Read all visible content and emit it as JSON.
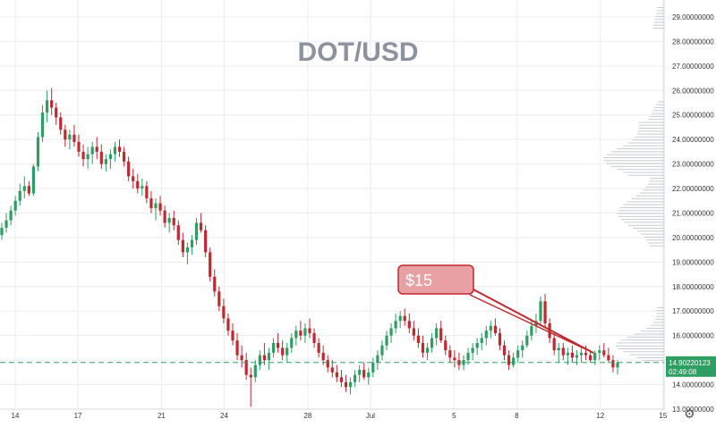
{
  "chart_data": {
    "type": "candlestick",
    "title": "DOT/USD",
    "annotation": "$15",
    "colors": {
      "up": "#2e9e62",
      "down": "#c0282f",
      "current_line": "#2e9e62",
      "annotation_fill": "#e8a0a4",
      "annotation_stroke": "#c0282f",
      "grid": "#e9edf2",
      "title": "#8c929e",
      "volume_profile": "#c8cbd0"
    },
    "y_ticks": [
      "13.00000000",
      "14.00000000",
      "15.00000000",
      "16.00000000",
      "17.00000000",
      "18.00000000",
      "19.00000000",
      "20.00000000",
      "21.00000000",
      "22.00000000",
      "23.00000000",
      "24.00000000",
      "25.00000000",
      "26.00000000",
      "27.00000000",
      "28.00000000",
      "29.00000000"
    ],
    "ylim": [
      13,
      29.4
    ],
    "x_ticks": [
      {
        "label": "14",
        "day": 0
      },
      {
        "label": "17",
        "day": 3
      },
      {
        "label": "21",
        "day": 7
      },
      {
        "label": "24",
        "day": 10
      },
      {
        "label": "28",
        "day": 14
      },
      {
        "label": "Jul",
        "day": 17
      },
      {
        "label": "5",
        "day": 21
      },
      {
        "label": "8",
        "day": 24
      },
      {
        "label": "12",
        "day": 28
      },
      {
        "label": "15",
        "day": 31
      }
    ],
    "x_axis_start_label": "14",
    "current_price": {
      "value": 14.90220123,
      "label": "14.90220123",
      "countdown": "02:49:08"
    },
    "settings_icon": "gear-icon",
    "candles": [
      [
        20.1,
        20.6,
        19.9,
        20.4
      ],
      [
        20.4,
        21.0,
        20.2,
        20.7
      ],
      [
        20.7,
        21.3,
        20.5,
        21.1
      ],
      [
        21.1,
        21.7,
        20.9,
        21.5
      ],
      [
        21.5,
        22.2,
        21.3,
        21.9
      ],
      [
        21.9,
        22.5,
        21.6,
        22.1
      ],
      [
        22.1,
        22.3,
        21.7,
        21.8
      ],
      [
        21.8,
        23.0,
        21.7,
        22.9
      ],
      [
        22.9,
        24.3,
        22.7,
        24.1
      ],
      [
        24.1,
        25.4,
        23.9,
        25.1
      ],
      [
        25.1,
        26.0,
        24.7,
        25.6
      ],
      [
        25.6,
        26.1,
        25.0,
        25.3
      ],
      [
        25.3,
        25.5,
        24.6,
        24.9
      ],
      [
        24.9,
        25.1,
        24.2,
        24.4
      ],
      [
        24.4,
        24.6,
        23.7,
        24.0
      ],
      [
        24.0,
        24.4,
        23.6,
        24.2
      ],
      [
        24.2,
        24.6,
        23.7,
        23.9
      ],
      [
        23.9,
        24.2,
        23.3,
        23.5
      ],
      [
        23.5,
        23.8,
        22.9,
        23.2
      ],
      [
        23.2,
        23.7,
        22.8,
        23.4
      ],
      [
        23.4,
        23.9,
        23.0,
        23.7
      ],
      [
        23.7,
        24.1,
        23.2,
        23.5
      ],
      [
        23.5,
        23.8,
        22.8,
        23.0
      ],
      [
        23.0,
        23.4,
        22.7,
        23.2
      ],
      [
        23.2,
        23.6,
        22.8,
        23.4
      ],
      [
        23.4,
        23.9,
        23.1,
        23.7
      ],
      [
        23.7,
        24.0,
        23.3,
        23.5
      ],
      [
        23.5,
        23.7,
        22.9,
        23.1
      ],
      [
        23.1,
        23.3,
        22.3,
        22.5
      ],
      [
        22.5,
        22.8,
        22.0,
        22.3
      ],
      [
        22.3,
        22.6,
        21.8,
        22.0
      ],
      [
        22.0,
        22.4,
        21.7,
        22.1
      ],
      [
        22.1,
        22.3,
        21.4,
        21.6
      ],
      [
        21.6,
        21.9,
        21.0,
        21.2
      ],
      [
        21.2,
        21.6,
        20.7,
        21.4
      ],
      [
        21.4,
        21.7,
        20.9,
        21.1
      ],
      [
        21.1,
        21.3,
        20.4,
        20.6
      ],
      [
        20.6,
        21.0,
        20.2,
        20.8
      ],
      [
        20.8,
        21.1,
        20.3,
        20.5
      ],
      [
        20.5,
        20.7,
        19.7,
        19.9
      ],
      [
        19.9,
        20.2,
        19.2,
        19.4
      ],
      [
        19.4,
        19.8,
        18.9,
        19.6
      ],
      [
        19.6,
        20.1,
        19.3,
        19.9
      ],
      [
        19.9,
        20.8,
        19.7,
        20.6
      ],
      [
        20.6,
        21.0,
        20.2,
        20.3
      ],
      [
        20.3,
        20.5,
        19.2,
        19.4
      ],
      [
        19.4,
        19.6,
        18.2,
        18.4
      ],
      [
        18.4,
        18.7,
        17.6,
        17.8
      ],
      [
        17.8,
        18.0,
        17.0,
        17.2
      ],
      [
        17.2,
        17.5,
        16.5,
        16.7
      ],
      [
        16.7,
        16.9,
        16.0,
        16.2
      ],
      [
        16.2,
        16.5,
        15.6,
        15.8
      ],
      [
        15.8,
        16.1,
        15.0,
        15.2
      ],
      [
        15.2,
        15.6,
        14.7,
        15.0
      ],
      [
        15.0,
        15.3,
        14.2,
        14.4
      ],
      [
        14.4,
        14.7,
        13.1,
        14.3
      ],
      [
        14.3,
        15.0,
        14.1,
        14.8
      ],
      [
        14.8,
        15.4,
        14.6,
        15.2
      ],
      [
        15.2,
        15.7,
        14.8,
        15.0
      ],
      [
        15.0,
        15.5,
        14.6,
        15.3
      ],
      [
        15.3,
        15.9,
        15.1,
        15.7
      ],
      [
        15.7,
        16.1,
        15.3,
        15.5
      ],
      [
        15.5,
        15.8,
        15.0,
        15.2
      ],
      [
        15.2,
        15.7,
        14.9,
        15.5
      ],
      [
        15.5,
        16.1,
        15.3,
        15.9
      ],
      [
        15.9,
        16.4,
        15.6,
        16.2
      ],
      [
        16.2,
        16.6,
        15.8,
        16.0
      ],
      [
        16.0,
        16.5,
        15.7,
        16.3
      ],
      [
        16.3,
        16.7,
        15.9,
        16.1
      ],
      [
        16.1,
        16.3,
        15.5,
        15.7
      ],
      [
        15.7,
        15.9,
        15.1,
        15.3
      ],
      [
        15.3,
        15.6,
        14.8,
        15.0
      ],
      [
        15.0,
        15.2,
        14.5,
        14.7
      ],
      [
        14.7,
        15.0,
        14.3,
        14.5
      ],
      [
        14.5,
        14.8,
        14.1,
        14.3
      ],
      [
        14.3,
        14.6,
        13.9,
        14.1
      ],
      [
        14.1,
        14.4,
        13.7,
        13.9
      ],
      [
        13.9,
        14.3,
        13.6,
        14.1
      ],
      [
        14.1,
        14.6,
        13.9,
        14.4
      ],
      [
        14.4,
        14.8,
        14.1,
        14.6
      ],
      [
        14.6,
        14.9,
        14.2,
        14.3
      ],
      [
        14.3,
        14.7,
        14.0,
        14.5
      ],
      [
        14.5,
        15.1,
        14.3,
        14.9
      ],
      [
        14.9,
        15.4,
        14.6,
        15.2
      ],
      [
        15.2,
        15.8,
        15.0,
        15.6
      ],
      [
        15.6,
        16.2,
        15.4,
        16.0
      ],
      [
        16.0,
        16.5,
        15.7,
        16.3
      ],
      [
        16.3,
        16.9,
        16.1,
        16.6
      ],
      [
        16.6,
        17.0,
        16.3,
        16.8
      ],
      [
        16.8,
        17.1,
        16.4,
        16.6
      ],
      [
        16.6,
        16.9,
        16.1,
        16.3
      ],
      [
        16.3,
        16.6,
        15.8,
        16.0
      ],
      [
        16.0,
        16.3,
        15.5,
        15.7
      ],
      [
        15.7,
        16.0,
        15.1,
        15.3
      ],
      [
        15.3,
        15.7,
        15.0,
        15.5
      ],
      [
        15.5,
        16.1,
        15.3,
        15.9
      ],
      [
        15.9,
        16.5,
        15.6,
        16.3
      ],
      [
        16.3,
        16.6,
        15.7,
        15.8
      ],
      [
        15.8,
        16.0,
        15.2,
        15.4
      ],
      [
        15.4,
        15.6,
        14.9,
        15.1
      ],
      [
        15.1,
        15.4,
        14.7,
        15.0
      ],
      [
        15.0,
        15.3,
        14.6,
        14.8
      ],
      [
        14.8,
        15.2,
        14.6,
        15.0
      ],
      [
        15.0,
        15.5,
        14.8,
        15.3
      ],
      [
        15.3,
        15.7,
        15.0,
        15.5
      ],
      [
        15.5,
        15.9,
        15.2,
        15.7
      ],
      [
        15.7,
        16.1,
        15.4,
        15.9
      ],
      [
        15.9,
        16.4,
        15.6,
        16.2
      ],
      [
        16.2,
        16.6,
        15.9,
        16.4
      ],
      [
        16.4,
        16.7,
        16.0,
        16.1
      ],
      [
        16.1,
        16.3,
        15.4,
        15.6
      ],
      [
        15.6,
        15.8,
        15.0,
        15.2
      ],
      [
        15.2,
        15.4,
        14.6,
        14.8
      ],
      [
        14.8,
        15.3,
        14.7,
        15.1
      ],
      [
        15.1,
        15.6,
        14.9,
        15.4
      ],
      [
        15.4,
        15.8,
        15.1,
        15.6
      ],
      [
        15.6,
        16.2,
        15.5,
        16.0
      ],
      [
        16.0,
        16.6,
        15.8,
        16.4
      ],
      [
        16.4,
        16.9,
        16.1,
        16.6
      ],
      [
        16.6,
        17.6,
        16.4,
        17.4
      ],
      [
        17.4,
        17.7,
        16.3,
        16.5
      ],
      [
        16.5,
        16.7,
        15.7,
        15.9
      ],
      [
        15.9,
        16.1,
        15.2,
        15.4
      ],
      [
        15.4,
        15.7,
        14.9,
        15.5
      ],
      [
        15.5,
        15.7,
        15.0,
        15.2
      ],
      [
        15.2,
        15.5,
        14.8,
        15.3
      ],
      [
        15.3,
        15.6,
        14.9,
        15.1
      ],
      [
        15.1,
        15.4,
        14.8,
        15.2
      ],
      [
        15.2,
        15.5,
        14.9,
        15.3
      ],
      [
        15.3,
        15.6,
        15.0,
        15.2
      ],
      [
        15.2,
        15.4,
        14.9,
        15.0
      ],
      [
        15.0,
        15.4,
        14.8,
        15.3
      ],
      [
        15.3,
        15.6,
        15.0,
        15.4
      ],
      [
        15.4,
        15.7,
        15.1,
        15.2
      ],
      [
        15.2,
        15.5,
        14.9,
        15.0
      ],
      [
        15.0,
        15.2,
        14.5,
        14.7
      ],
      [
        14.7,
        15.0,
        14.4,
        14.9
      ]
    ]
  }
}
